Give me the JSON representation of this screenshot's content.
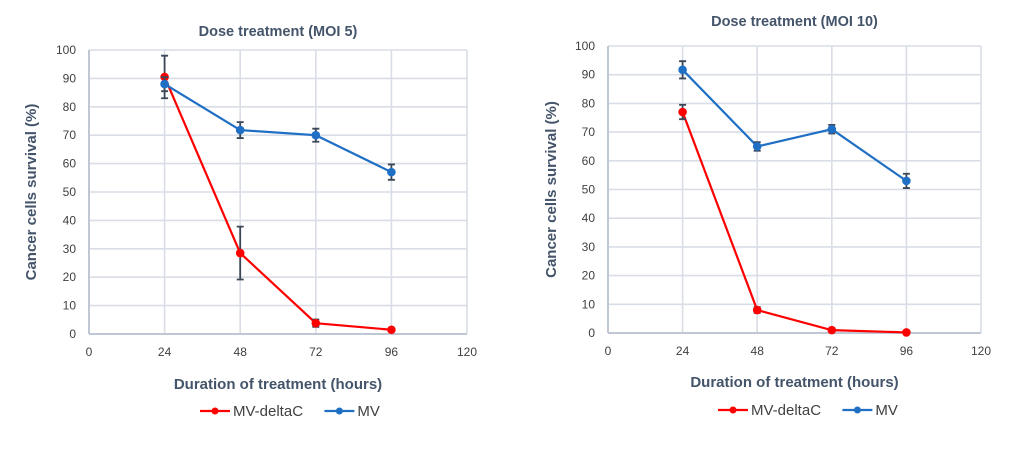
{
  "chart_data": [
    {
      "type": "line",
      "title": "Dose treatment (MOI 5)",
      "xlabel": "Duration of treatment (hours)",
      "ylabel": "Cancer cells survival (%)",
      "xlim": [
        0,
        120
      ],
      "ylim": [
        0,
        100
      ],
      "xticks": [
        0,
        24,
        48,
        72,
        96,
        120
      ],
      "yticks": [
        0,
        10,
        20,
        30,
        40,
        50,
        60,
        70,
        80,
        90,
        100
      ],
      "grid": true,
      "legend": "bottom",
      "x": [
        24,
        48,
        72,
        96
      ],
      "series": [
        {
          "name": "MV-deltaC",
          "color": "#ff0000",
          "values": [
            90.5,
            28.5,
            3.8,
            1.5
          ],
          "errors": [
            7.5,
            9.3,
            1.3,
            0
          ]
        },
        {
          "name": "MV",
          "color": "#1f6fc5",
          "values": [
            88,
            71.8,
            70,
            57
          ],
          "errors": [
            2.5,
            2.8,
            2.3,
            2.7
          ]
        }
      ]
    },
    {
      "type": "line",
      "title": "Dose treatment (MOI 10)",
      "xlabel": "Duration of treatment (hours)",
      "ylabel": "Cancer cells survival (%)",
      "xlim": [
        0,
        120
      ],
      "ylim": [
        0,
        100
      ],
      "xticks": [
        0,
        24,
        48,
        72,
        96,
        120
      ],
      "yticks": [
        0,
        10,
        20,
        30,
        40,
        50,
        60,
        70,
        80,
        90,
        100
      ],
      "grid": true,
      "legend": "bottom",
      "x": [
        24,
        48,
        72,
        96
      ],
      "series": [
        {
          "name": "MV-deltaC",
          "color": "#ff0000",
          "values": [
            77,
            8,
            1,
            0.2
          ],
          "errors": [
            2.5,
            1,
            0,
            0
          ]
        },
        {
          "name": "MV",
          "color": "#1f6fc5",
          "values": [
            91.7,
            65,
            71,
            53
          ],
          "errors": [
            3,
            1.5,
            1.5,
            2.5
          ]
        }
      ]
    }
  ]
}
